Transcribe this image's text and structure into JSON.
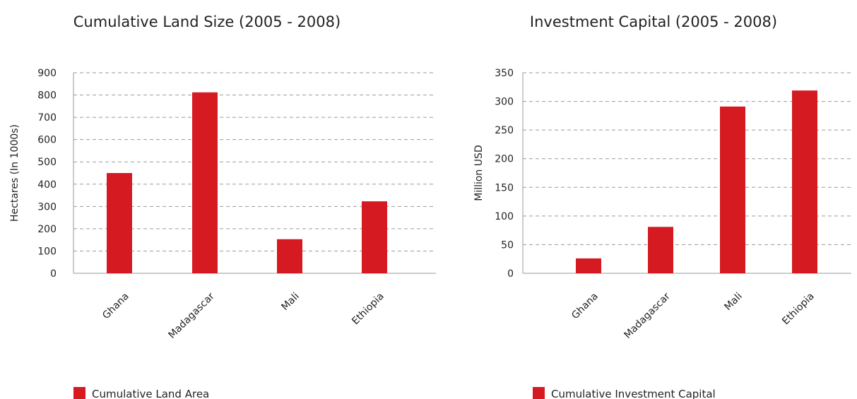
{
  "chart_data": [
    {
      "type": "bar",
      "title": "Cumulative Land Size (2005 - 2008)",
      "xlabel": "",
      "ylabel": "Hectares (In 1000s)",
      "categories": [
        "Ghana",
        "Madagascar",
        "Mali",
        "Ethiopia"
      ],
      "series": [
        {
          "name": "Cumulative Land Area",
          "values": [
            450,
            812,
            153,
            323
          ]
        }
      ],
      "ylim": [
        0,
        900
      ],
      "yticks": [
        0,
        100,
        200,
        300,
        400,
        500,
        600,
        700,
        800,
        900
      ],
      "grid": true,
      "legend": "bottom-left",
      "color": "#d51b21"
    },
    {
      "type": "bar",
      "title": "Investment Capital (2005 - 2008)",
      "xlabel": "",
      "ylabel": "Million USD",
      "categories": [
        "Ghana",
        "Madagascar",
        "Mali",
        "Ethiopia"
      ],
      "series": [
        {
          "name": "Cumulative Investment Capital",
          "values": [
            26,
            81,
            291,
            319
          ]
        }
      ],
      "ylim": [
        0,
        350
      ],
      "yticks": [
        0,
        50,
        100,
        150,
        200,
        250,
        300,
        350
      ],
      "grid": true,
      "legend": "bottom-left",
      "color": "#d51b21"
    }
  ]
}
